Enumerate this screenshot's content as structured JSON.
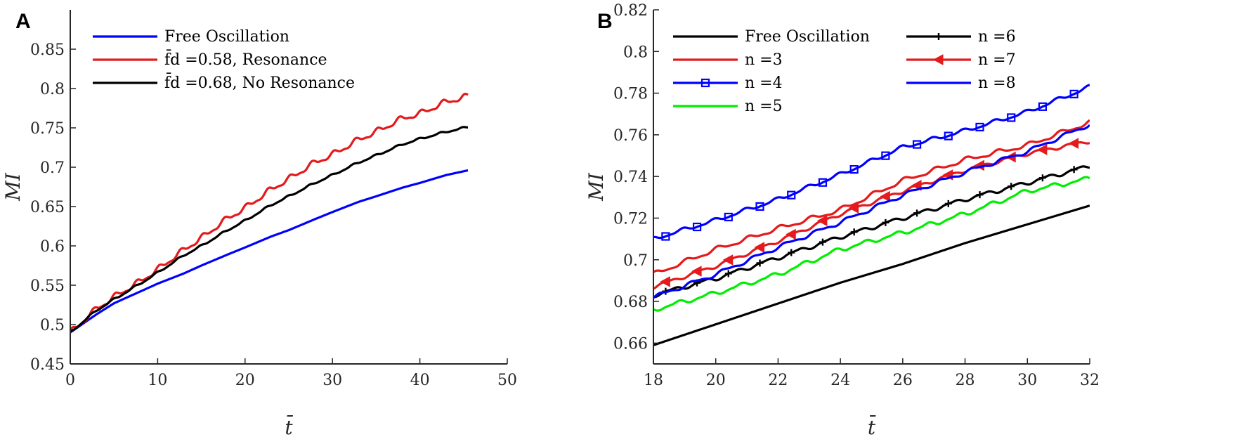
{
  "chart_data": [
    {
      "panel": "A",
      "type": "line",
      "xlabel": "t̄",
      "ylabel": "MI",
      "xlim": [
        0,
        50
      ],
      "ylim": [
        0.45,
        0.9
      ],
      "xticks": [
        "0",
        "10",
        "20",
        "30",
        "40",
        "50"
      ],
      "yticks": [
        "0.45",
        "0.5",
        "0.55",
        "0.6",
        "0.65",
        "0.7",
        "0.75",
        "0.8",
        "0.85"
      ],
      "grid": false,
      "legend_position": "top-left",
      "series": [
        {
          "name": "Free Oscillation",
          "color": "#0000ff",
          "marker": "none",
          "ripple": 0,
          "x": [
            0,
            3,
            5,
            8,
            10,
            13,
            15,
            18,
            20,
            23,
            25,
            28,
            30,
            33,
            35,
            38,
            40,
            43,
            45.5
          ],
          "y": [
            0.49,
            0.513,
            0.527,
            0.542,
            0.552,
            0.565,
            0.575,
            0.589,
            0.598,
            0.612,
            0.62,
            0.634,
            0.643,
            0.656,
            0.663,
            0.674,
            0.68,
            0.69,
            0.696
          ]
        },
        {
          "name": "f̄d =0.58, Resonance",
          "color": "#e41a1c",
          "marker": "none",
          "ripple": 0.006,
          "x": [
            0,
            3,
            5,
            8,
            10,
            13,
            15,
            18,
            20,
            23,
            25,
            28,
            30,
            33,
            35,
            38,
            40,
            43,
            45.5
          ],
          "y": [
            0.49,
            0.52,
            0.535,
            0.555,
            0.57,
            0.595,
            0.61,
            0.635,
            0.648,
            0.672,
            0.685,
            0.706,
            0.716,
            0.735,
            0.745,
            0.762,
            0.768,
            0.783,
            0.79
          ]
        },
        {
          "name": "f̄d =0.68, No Resonance",
          "color": "#000000",
          "marker": "none",
          "ripple": 0.002,
          "x": [
            0,
            3,
            5,
            8,
            10,
            13,
            15,
            18,
            20,
            23,
            25,
            28,
            30,
            33,
            35,
            38,
            40,
            43,
            45.5
          ],
          "y": [
            0.49,
            0.518,
            0.532,
            0.552,
            0.566,
            0.588,
            0.6,
            0.62,
            0.632,
            0.652,
            0.663,
            0.68,
            0.69,
            0.706,
            0.715,
            0.729,
            0.736,
            0.745,
            0.751
          ]
        }
      ]
    },
    {
      "panel": "B",
      "type": "line",
      "xlabel": "t̄",
      "ylabel": "MI",
      "xlim": [
        18,
        32
      ],
      "ylim": [
        0.65,
        0.82
      ],
      "xticks": [
        "18",
        "20",
        "22",
        "24",
        "26",
        "28",
        "30",
        "32"
      ],
      "yticks": [
        "0.66",
        "0.68",
        "0.7",
        "0.72",
        "0.74",
        "0.76",
        "0.78",
        "0.8",
        "0.82"
      ],
      "grid": false,
      "legend_position": "top-left",
      "series": [
        {
          "name": "Free Oscillation",
          "color": "#000000",
          "marker": "none",
          "ripple": 0,
          "x": [
            18,
            20,
            22,
            24,
            26,
            28,
            30,
            32
          ],
          "y": [
            0.659,
            0.669,
            0.679,
            0.689,
            0.698,
            0.708,
            0.717,
            0.726
          ]
        },
        {
          "name": "n =3",
          "color": "#e41a1c",
          "marker": "none",
          "ripple": 0.0018,
          "x": [
            18,
            20,
            22,
            24,
            26,
            28,
            30,
            32
          ],
          "y": [
            0.693,
            0.705,
            0.715,
            0.724,
            0.738,
            0.748,
            0.755,
            0.766
          ]
        },
        {
          "name": "n =4",
          "color": "#0000ff",
          "marker": "square",
          "ripple": 0.0015,
          "x": [
            18,
            20,
            22,
            24,
            26,
            28,
            30,
            32
          ],
          "y": [
            0.71,
            0.719,
            0.729,
            0.741,
            0.754,
            0.762,
            0.771,
            0.783
          ]
        },
        {
          "name": "n =5",
          "color": "#00ee00",
          "marker": "none",
          "ripple": 0.0018,
          "x": [
            18,
            20,
            22,
            24,
            26,
            28,
            30,
            32
          ],
          "y": [
            0.676,
            0.684,
            0.693,
            0.705,
            0.713,
            0.722,
            0.733,
            0.739
          ]
        },
        {
          "name": "n =6",
          "color": "#000000",
          "marker": "plus",
          "ripple": 0.0016,
          "x": [
            18,
            20,
            22,
            24,
            26,
            28,
            30,
            32
          ],
          "y": [
            0.683,
            0.691,
            0.701,
            0.711,
            0.72,
            0.729,
            0.737,
            0.745
          ]
        },
        {
          "name": "n =7",
          "color": "#e41a1c",
          "marker": "triangle-left",
          "ripple": 0.0014,
          "x": [
            18,
            20,
            22,
            24,
            26,
            28,
            30,
            32
          ],
          "y": [
            0.687,
            0.697,
            0.709,
            0.722,
            0.733,
            0.743,
            0.751,
            0.757
          ]
        },
        {
          "name": "n =8",
          "color": "#0000ff",
          "marker": "none",
          "ripple": 0.0016,
          "x": [
            18,
            20,
            22,
            24,
            26,
            28,
            30,
            32
          ],
          "y": [
            0.682,
            0.693,
            0.706,
            0.718,
            0.731,
            0.742,
            0.752,
            0.765
          ]
        }
      ]
    }
  ]
}
